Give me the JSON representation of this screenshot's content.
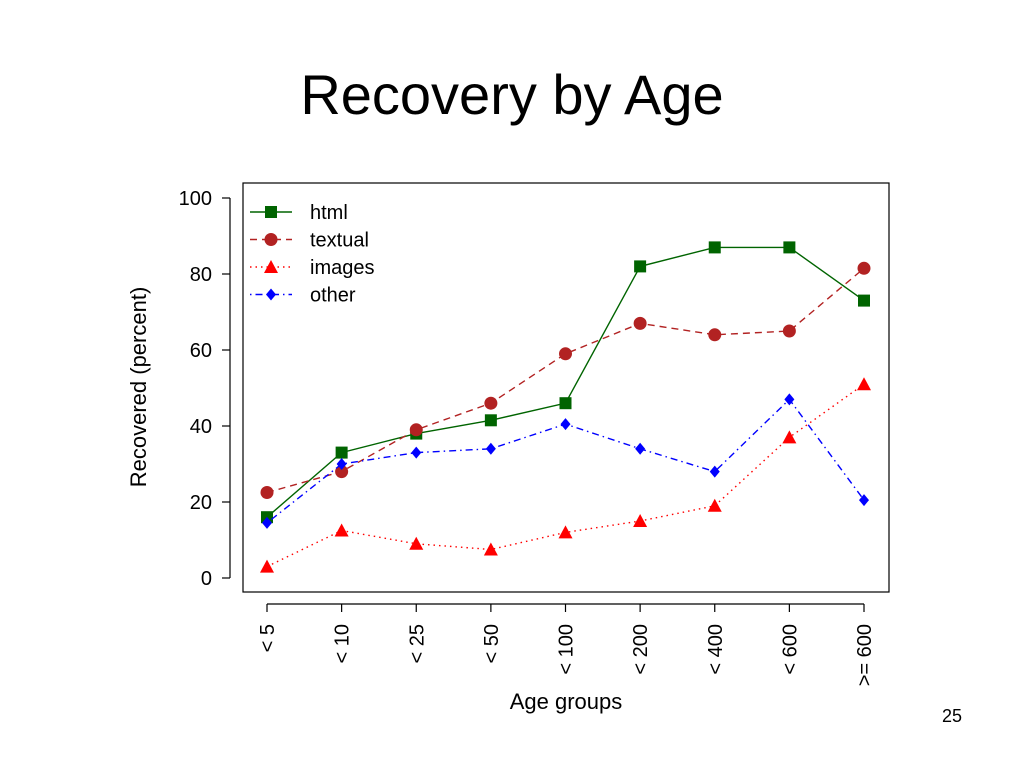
{
  "slide": {
    "title": "Recovery by Age",
    "page_number": "25"
  },
  "chart_data": {
    "type": "line",
    "title": "",
    "xlabel": "Age groups",
    "ylabel": "Recovered (percent)",
    "ylim": [
      0,
      100
    ],
    "yticks": [
      0,
      20,
      40,
      60,
      80,
      100
    ],
    "categories": [
      "< 5",
      "< 10",
      "< 25",
      "< 50",
      "< 100",
      "< 200",
      "< 400",
      "< 600",
      ">= 600"
    ],
    "legend_position": "top-left",
    "grid": false,
    "series": [
      {
        "name": "html",
        "color": "#006400",
        "marker": "square",
        "line": "solid",
        "values": [
          16,
          33,
          38,
          41.5,
          46,
          82,
          87,
          87,
          73
        ]
      },
      {
        "name": "textual",
        "color": "#b22222",
        "marker": "circle",
        "line": "dashed",
        "values": [
          22.5,
          28,
          39,
          46,
          59,
          67,
          64,
          65,
          81.5
        ]
      },
      {
        "name": "images",
        "color": "#ff0000",
        "marker": "triangle",
        "line": "dotted",
        "values": [
          3,
          12.5,
          9,
          7.5,
          12,
          15,
          19,
          37,
          51
        ]
      },
      {
        "name": "other",
        "color": "#0000ff",
        "marker": "diamond",
        "line": "dashdot",
        "values": [
          14.5,
          30,
          33,
          34,
          40.5,
          34,
          28,
          47,
          20.5
        ]
      }
    ]
  }
}
